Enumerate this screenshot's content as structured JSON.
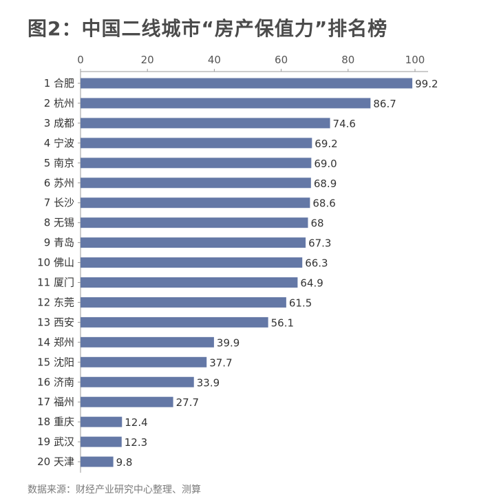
{
  "chart_data": {
    "type": "bar",
    "orientation": "horizontal",
    "title": "图2：中国二线城市“房产保值力”排名榜",
    "categories": [
      "1 合肥",
      "2 杭州",
      "3 成都",
      "4 宁波",
      "5 南京",
      "6 苏州",
      "7 长沙",
      "8 无锡",
      "9 青岛",
      "10 佛山",
      "11 厦门",
      "12 东莞",
      "13 西安",
      "14 郑州",
      "15 沈阳",
      "16 济南",
      "17 福州",
      "18 重庆",
      "19 武汉",
      "20 天津"
    ],
    "values": [
      99.2,
      86.7,
      74.6,
      69.2,
      69.0,
      68.9,
      68.6,
      68,
      67.3,
      66.3,
      64.9,
      61.5,
      56.1,
      39.9,
      37.7,
      33.9,
      27.7,
      12.4,
      12.3,
      9.8
    ],
    "value_labels": [
      "99.2",
      "86.7",
      "74.6",
      "69.2",
      "69.0",
      "68.9",
      "68.6",
      "68",
      "67.3",
      "66.3",
      "64.9",
      "61.5",
      "56.1",
      "39.9",
      "37.7",
      "33.9",
      "27.7",
      "12.4",
      "12.3",
      "9.8"
    ],
    "x_ticks": [
      "0",
      "20",
      "40",
      "60",
      "80",
      "100"
    ],
    "xlim": [
      0,
      100
    ],
    "axis_position": "top",
    "grid": false,
    "bar_color": "#6478a6",
    "source": "数据来源：财经产业研究中心整理、测算"
  }
}
